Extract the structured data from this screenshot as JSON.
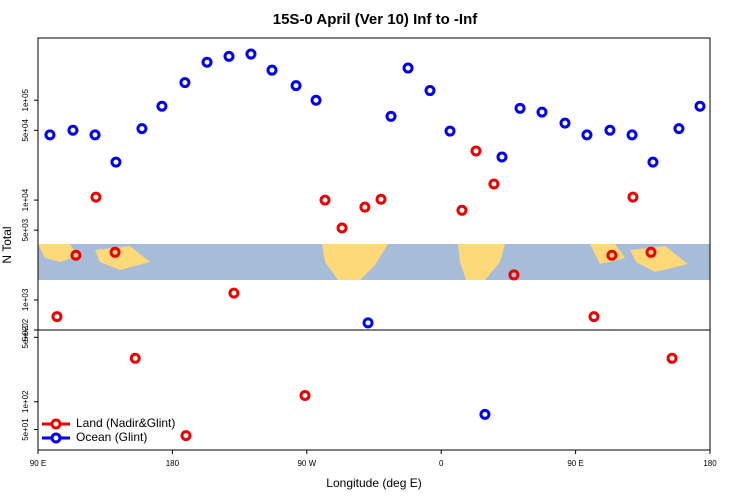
{
  "chart_data": [
    {
      "type": "scatter",
      "title": "15S-0 April (Ver 10)   Inf to -Inf",
      "y_label": "N Total",
      "log_y": true,
      "xlim": [
        90,
        540
      ],
      "ylim": [
        500,
        420000
      ],
      "yticks": [
        {
          "value": 500,
          "label": "5e+02"
        },
        {
          "value": 1000,
          "label": "1e+03"
        },
        {
          "value": 5000,
          "label": "5e+03"
        },
        {
          "value": 10000,
          "label": "1e+04"
        },
        {
          "value": 50000,
          "label": "5e+04"
        },
        {
          "value": 100000,
          "label": "1e+05"
        }
      ],
      "series": [
        {
          "color": "#ee0000",
          "x": [
            102.7,
            115.4,
            128.8,
            141.6,
            221.2,
            282.2,
            293.6,
            308.9,
            319.7,
            373.9,
            383.3,
            395.3,
            408.7,
            462.3,
            474.3,
            488.4,
            500.5
          ],
          "values": [
            680,
            2800,
            10700,
            3000,
            1170,
            10000,
            5250,
            8500,
            10200,
            7900,
            31000,
            14500,
            1780,
            680,
            2800,
            10700,
            3000
          ]
        },
        {
          "color": "#0000ee",
          "x": [
            98,
            113.4,
            128.2,
            142.2,
            159.6,
            173,
            188.4,
            203.2,
            217.9,
            232.6,
            246.7,
            262.8,
            276.2,
            311,
            326.4,
            337.8,
            352.5,
            365.9,
            400.7,
            412.8,
            427.5,
            442.9,
            457.6,
            473,
            487.8,
            501.8,
            519.2,
            533.3
          ],
          "values": [
            45000,
            50000,
            45000,
            24000,
            52000,
            87000,
            150000,
            240000,
            275000,
            290000,
            200000,
            140000,
            100000,
            590,
            69000,
            210000,
            125000,
            49000,
            27000,
            83000,
            76000,
            59000,
            45000,
            50000,
            45000,
            24000,
            52000,
            87000
          ]
        }
      ]
    },
    {
      "type": "scatter",
      "x_label": "Longitude (deg E)",
      "log_y": true,
      "legend": "lower left",
      "xlim": [
        90,
        540
      ],
      "ylim": [
        30,
        600
      ],
      "xticks": [
        {
          "value": 90,
          "label": "90 E"
        },
        180,
        {
          "value": 270,
          "label": "90 W"
        },
        {
          "value": 360,
          "label": "0"
        },
        {
          "value": 450,
          "label": "90 E"
        },
        {
          "value": 540,
          "label": "180"
        }
      ],
      "yticks": [
        {
          "value": 50,
          "label": "5e+01"
        },
        {
          "value": 100,
          "label": "1e+02"
        },
        {
          "value": 500,
          "label": "5e+02"
        }
      ],
      "series": [
        {
          "name": "Land (Nadir&Glint)",
          "color": "#ee0000",
          "x": [
            155.1,
            189.1,
            268.8,
            514.6
          ],
          "values": [
            296,
            43,
            117,
            296
          ]
        },
        {
          "name": "Ocean (Glint)",
          "color": "#0000ee",
          "x": [
            389.3
          ],
          "values": [
            73
          ]
        }
      ]
    }
  ]
}
